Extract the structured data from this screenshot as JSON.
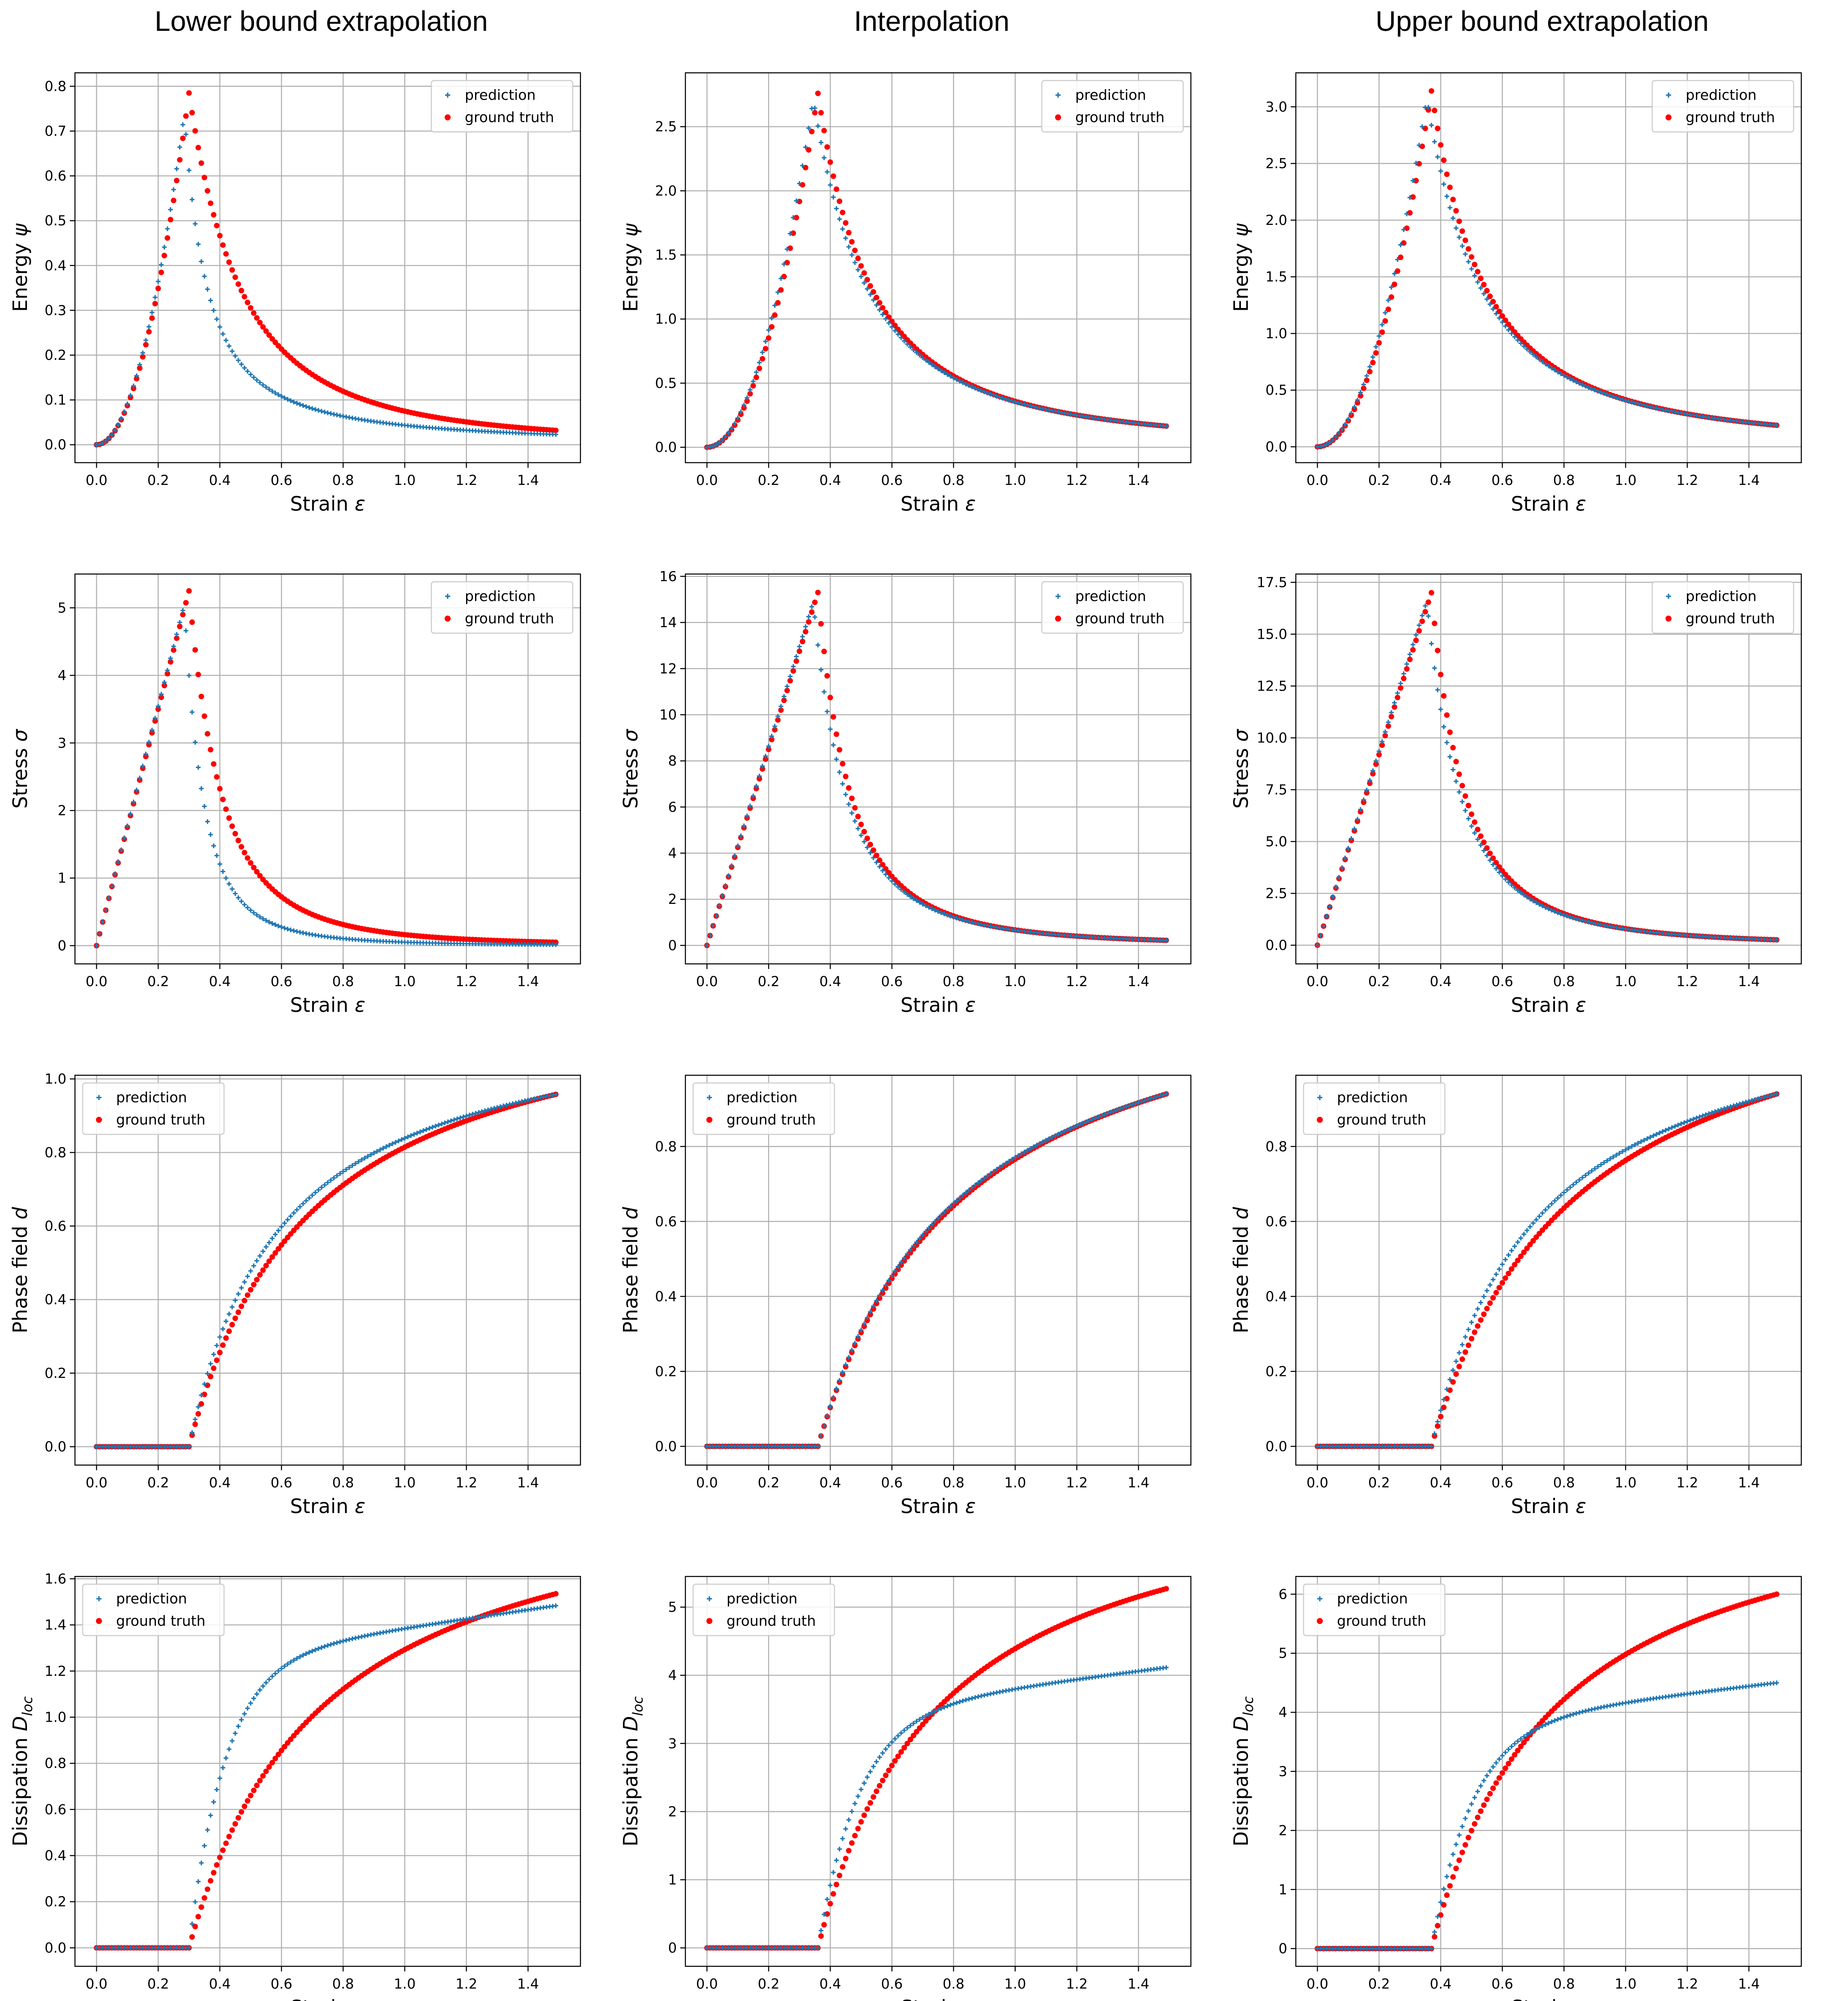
{
  "figure": {
    "column_titles": [
      "Lower bound extrapolation",
      "Interpolation",
      "Upper bound extrapolation"
    ],
    "x_label_prefix": "Strain ",
    "x_label_symbol": "ε",
    "legend": {
      "prediction": "prediction",
      "ground_truth": "ground truth"
    },
    "colors": {
      "prediction": "#1f77b4",
      "ground_truth": "#ff0000",
      "grid": "#b0b0b0",
      "axis": "#000000"
    },
    "icons": {
      "prediction_marker": "plus-icon",
      "ground_truth_marker": "dot-icon"
    }
  },
  "chart_data": [
    {
      "type": "scatter",
      "row": 0,
      "col": 0,
      "ylabel": "Energy",
      "ysym": "ψ",
      "ysub": "",
      "xlim": [
        -0.07,
        1.57
      ],
      "ylim": [
        -0.04,
        0.83
      ],
      "xticks": [
        0.0,
        0.2,
        0.4,
        0.6,
        0.8,
        1.0,
        1.2,
        1.4
      ],
      "yticks": [
        0.0,
        0.1,
        0.2,
        0.3,
        0.4,
        0.5,
        0.6,
        0.7,
        0.8
      ],
      "legend": "upper right",
      "peak": 0.3,
      "curves": {
        "ground_truth": {
          "kind": "peak",
          "peak": 0.785,
          "tail": 0.032,
          "alpha": 2.3
        },
        "prediction": {
          "kind": "peak",
          "peak": 0.74,
          "tail": 0.023,
          "alpha": 1.35
        }
      },
      "series": [
        {
          "name": "prediction"
        },
        {
          "name": "ground truth"
        }
      ]
    },
    {
      "type": "scatter",
      "row": 0,
      "col": 1,
      "ylabel": "Energy",
      "ysym": "ψ",
      "ysub": "",
      "xlim": [
        -0.07,
        1.57
      ],
      "ylim": [
        -0.12,
        2.92
      ],
      "xticks": [
        0.0,
        0.2,
        0.4,
        0.6,
        0.8,
        1.0,
        1.2,
        1.4
      ],
      "yticks": [
        0.0,
        0.5,
        1.0,
        1.5,
        2.0,
        2.5
      ],
      "legend": "upper right",
      "peak": 0.36,
      "curves": {
        "ground_truth": {
          "kind": "peak",
          "peak": 2.76,
          "tail": 0.165,
          "alpha": 1.9
        },
        "prediction": {
          "kind": "peak",
          "peak": 2.72,
          "tail": 0.165,
          "alpha": 1.9
        }
      },
      "series": [
        {
          "name": "prediction"
        },
        {
          "name": "ground truth"
        }
      ]
    },
    {
      "type": "scatter",
      "row": 0,
      "col": 2,
      "ylabel": "Energy",
      "ysym": "ψ",
      "ysub": "",
      "xlim": [
        -0.07,
        1.57
      ],
      "ylim": [
        -0.14,
        3.3
      ],
      "xticks": [
        0.0,
        0.2,
        0.4,
        0.6,
        0.8,
        1.0,
        1.2,
        1.4
      ],
      "yticks": [
        0.0,
        0.5,
        1.0,
        1.5,
        2.0,
        2.5,
        3.0
      ],
      "legend": "upper right",
      "peak": 0.37,
      "curves": {
        "ground_truth": {
          "kind": "peak",
          "peak": 3.14,
          "tail": 0.19,
          "alpha": 1.9
        },
        "prediction": {
          "kind": "peak",
          "peak": 3.08,
          "tail": 0.19,
          "alpha": 1.9
        }
      },
      "series": [
        {
          "name": "prediction"
        },
        {
          "name": "ground truth"
        }
      ]
    },
    {
      "type": "scatter",
      "row": 1,
      "col": 0,
      "ylabel": "Stress",
      "ysym": "σ",
      "ysub": "",
      "xlim": [
        -0.07,
        1.57
      ],
      "ylim": [
        -0.27,
        5.5
      ],
      "xticks": [
        0.0,
        0.2,
        0.4,
        0.6,
        0.8,
        1.0,
        1.2,
        1.4
      ],
      "yticks": [
        0,
        1,
        2,
        3,
        4,
        5
      ],
      "legend": "upper right",
      "peak": 0.3,
      "curves": {
        "ground_truth": {
          "kind": "peak",
          "peak": 5.25,
          "tail": 0.05,
          "alpha": 3.0
        },
        "prediction": {
          "kind": "peak",
          "peak": 5.05,
          "tail": 0.015,
          "alpha": 2.8
        }
      },
      "series": [
        {
          "name": "prediction"
        },
        {
          "name": "ground truth"
        }
      ]
    },
    {
      "type": "scatter",
      "row": 1,
      "col": 1,
      "ylabel": "Stress",
      "ysym": "σ",
      "ysub": "",
      "xlim": [
        -0.07,
        1.57
      ],
      "ylim": [
        -0.8,
        16.1
      ],
      "xticks": [
        0.0,
        0.2,
        0.4,
        0.6,
        0.8,
        1.0,
        1.2,
        1.4
      ],
      "yticks": [
        0,
        2,
        4,
        6,
        8,
        10,
        12,
        14,
        16
      ],
      "legend": "upper right",
      "peak": 0.36,
      "curves": {
        "ground_truth": {
          "kind": "peak",
          "peak": 15.3,
          "tail": 0.22,
          "alpha": 2.6
        },
        "prediction": {
          "kind": "peak",
          "peak": 14.9,
          "tail": 0.22,
          "alpha": 2.6
        }
      },
      "series": [
        {
          "name": "prediction"
        },
        {
          "name": "ground truth"
        }
      ]
    },
    {
      "type": "scatter",
      "row": 1,
      "col": 2,
      "ylabel": "Stress",
      "ysym": "σ",
      "ysub": "",
      "xlim": [
        -0.07,
        1.57
      ],
      "ylim": [
        -0.9,
        17.9
      ],
      "xticks": [
        0.0,
        0.2,
        0.4,
        0.6,
        0.8,
        1.0,
        1.2,
        1.4
      ],
      "yticks": [
        0.0,
        2.5,
        5.0,
        7.5,
        10.0,
        12.5,
        15.0,
        17.5
      ],
      "legend": "upper right",
      "peak": 0.37,
      "curves": {
        "ground_truth": {
          "kind": "peak",
          "peak": 17.0,
          "tail": 0.26,
          "alpha": 2.6
        },
        "prediction": {
          "kind": "peak",
          "peak": 16.6,
          "tail": 0.26,
          "alpha": 2.6
        }
      },
      "series": [
        {
          "name": "prediction"
        },
        {
          "name": "ground truth"
        }
      ]
    },
    {
      "type": "scatter",
      "row": 2,
      "col": 0,
      "ylabel": "Phase field",
      "ysym": "d",
      "ysub": "",
      "xlim": [
        -0.07,
        1.57
      ],
      "ylim": [
        -0.05,
        1.01
      ],
      "xticks": [
        0.0,
        0.2,
        0.4,
        0.6,
        0.8,
        1.0,
        1.2,
        1.4
      ],
      "yticks": [
        0.0,
        0.2,
        0.4,
        0.6,
        0.8,
        1.0
      ],
      "legend": "upper left",
      "peak": 0.3,
      "curves": {
        "ground_truth": {
          "kind": "sat",
          "final": 0.958,
          "k": 1.35,
          "beta": 2.5
        },
        "prediction": {
          "kind": "sat",
          "final": 0.958,
          "k": 1.35,
          "beta": 3.3
        }
      },
      "series": [
        {
          "name": "prediction"
        },
        {
          "name": "ground truth"
        }
      ]
    },
    {
      "type": "scatter",
      "row": 2,
      "col": 1,
      "ylabel": "Phase field",
      "ysym": "d",
      "ysub": "",
      "xlim": [
        -0.07,
        1.57
      ],
      "ylim": [
        -0.05,
        0.99
      ],
      "xticks": [
        0.0,
        0.2,
        0.4,
        0.6,
        0.8,
        1.0,
        1.2,
        1.4
      ],
      "yticks": [
        0.0,
        0.2,
        0.4,
        0.6,
        0.8
      ],
      "legend": "upper left",
      "peak": 0.36,
      "curves": {
        "ground_truth": {
          "kind": "sat",
          "final": 0.94,
          "k": 1.35,
          "beta": 2.1
        },
        "prediction": {
          "kind": "sat",
          "final": 0.94,
          "k": 1.35,
          "beta": 2.2
        }
      },
      "series": [
        {
          "name": "prediction"
        },
        {
          "name": "ground truth"
        }
      ]
    },
    {
      "type": "scatter",
      "row": 2,
      "col": 2,
      "ylabel": "Phase field",
      "ysym": "d",
      "ysub": "",
      "xlim": [
        -0.07,
        1.57
      ],
      "ylim": [
        -0.05,
        0.99
      ],
      "xticks": [
        0.0,
        0.2,
        0.4,
        0.6,
        0.8,
        1.0,
        1.2,
        1.4
      ],
      "yticks": [
        0.0,
        0.2,
        0.4,
        0.6,
        0.8
      ],
      "legend": "upper left",
      "peak": 0.37,
      "curves": {
        "ground_truth": {
          "kind": "sat",
          "final": 0.94,
          "k": 1.35,
          "beta": 2.1
        },
        "prediction": {
          "kind": "sat",
          "final": 0.94,
          "k": 1.35,
          "beta": 2.8
        }
      },
      "series": [
        {
          "name": "prediction"
        },
        {
          "name": "ground truth"
        }
      ]
    },
    {
      "type": "scatter",
      "row": 3,
      "col": 0,
      "ylabel": "Dissipation",
      "ysym": "D",
      "ysub": "loc",
      "xlim": [
        -0.07,
        1.57
      ],
      "ylim": [
        -0.08,
        1.61
      ],
      "xticks": [
        0.0,
        0.2,
        0.4,
        0.6,
        0.8,
        1.0,
        1.2,
        1.4
      ],
      "yticks": [
        0.0,
        0.2,
        0.4,
        0.6,
        0.8,
        1.0,
        1.2,
        1.4,
        1.6
      ],
      "legend": "upper left",
      "peak": 0.3,
      "curves": {
        "ground_truth": {
          "kind": "sat",
          "final": 1.535,
          "k": 1.3,
          "beta": 2.3
        },
        "prediction": {
          "kind": "knee",
          "A": 1.25,
          "b": 8.5,
          "slope": 0.196
        }
      },
      "series": [
        {
          "name": "prediction"
        },
        {
          "name": "ground truth"
        }
      ]
    },
    {
      "type": "scatter",
      "row": 3,
      "col": 1,
      "ylabel": "Dissipation",
      "ysym": "D",
      "ysub": "loc",
      "xlim": [
        -0.07,
        1.57
      ],
      "ylim": [
        -0.27,
        5.45
      ],
      "xticks": [
        0.0,
        0.2,
        0.4,
        0.6,
        0.8,
        1.0,
        1.2,
        1.4
      ],
      "yticks": [
        0,
        1,
        2,
        3,
        4,
        5
      ],
      "legend": "upper left",
      "peak": 0.36,
      "curves": {
        "ground_truth": {
          "kind": "sat",
          "final": 5.27,
          "k": 1.3,
          "beta": 2.5
        },
        "prediction": {
          "kind": "knee",
          "A": 3.45,
          "b": 7.5,
          "slope": 0.588
        }
      },
      "series": [
        {
          "name": "prediction"
        },
        {
          "name": "ground truth"
        }
      ]
    },
    {
      "type": "scatter",
      "row": 3,
      "col": 2,
      "ylabel": "Dissipation",
      "ysym": "D",
      "ysub": "loc",
      "xlim": [
        -0.07,
        1.57
      ],
      "ylim": [
        -0.3,
        6.3
      ],
      "xticks": [
        0.0,
        0.2,
        0.4,
        0.6,
        0.8,
        1.0,
        1.2,
        1.4
      ],
      "yticks": [
        0,
        1,
        2,
        3,
        4,
        5,
        6
      ],
      "legend": "upper left",
      "peak": 0.37,
      "curves": {
        "ground_truth": {
          "kind": "sat",
          "final": 6.0,
          "k": 1.3,
          "beta": 2.5
        },
        "prediction": {
          "kind": "knee",
          "A": 3.8,
          "b": 7.5,
          "slope": 0.625
        }
      },
      "series": [
        {
          "name": "prediction"
        },
        {
          "name": "ground truth"
        }
      ]
    }
  ]
}
